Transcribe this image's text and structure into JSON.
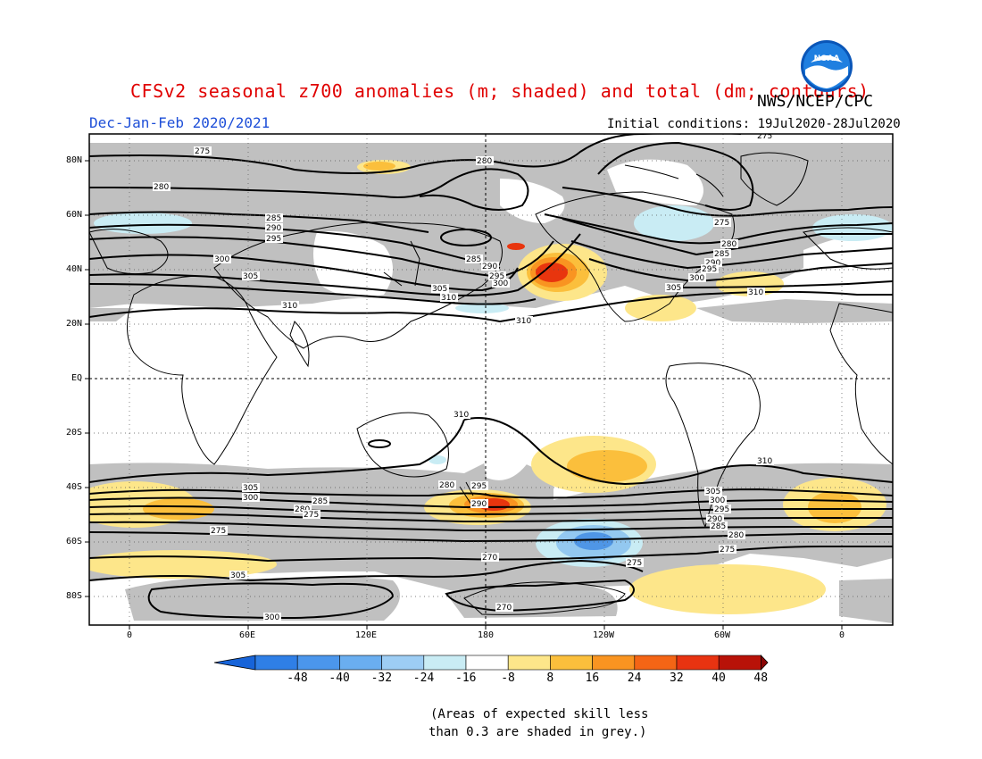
{
  "header": {
    "title": "CFSv2 seasonal z700 anomalies (m; shaded) and total (dm; contours)",
    "agency": "NWS/NCEP/CPC",
    "season": "Dec-Jan-Feb 2020/2021",
    "initial_conditions": "Initial conditions: 19Jul2020-28Jul2020",
    "logo_text": "NOAA"
  },
  "map": {
    "lat_labels": [
      "80N",
      "60N",
      "40N",
      "20N",
      "EQ",
      "20S",
      "40S",
      "60S",
      "80S"
    ],
    "lon_labels": [
      "0",
      "60E",
      "120E",
      "180",
      "120W",
      "60W",
      "0"
    ],
    "contour_labels": [
      "275",
      "275",
      "280",
      "280",
      "285",
      "290",
      "295",
      "300",
      "305",
      "310",
      "310",
      "275",
      "280",
      "285",
      "290",
      "295",
      "300",
      "305",
      "310",
      "310",
      "310",
      "305",
      "300",
      "295",
      "290",
      "285",
      "280",
      "275",
      "305",
      "300",
      "295",
      "290",
      "285",
      "280",
      "275",
      "270",
      "270",
      "275",
      "275",
      "305",
      "300",
      "280",
      "285",
      "290",
      "295",
      "300",
      "305",
      "310"
    ],
    "colors": {
      "skill_grey": "#c0c0c0",
      "warm_light": "#fde68a",
      "warm_mid": "#fbbf3c",
      "warm_strong": "#f97316",
      "warm_hot": "#e8350e",
      "cool_light": "#c9ecf4",
      "cool_mid": "#93c8f0",
      "cool_strong": "#4f96e6"
    }
  },
  "colorbar": {
    "ticks": [
      "-48",
      "-40",
      "-32",
      "-24",
      "-16",
      "-8",
      "8",
      "16",
      "24",
      "32",
      "40",
      "48"
    ],
    "colors": [
      "#1764d9",
      "#2f7fe6",
      "#4b96ec",
      "#6aaef0",
      "#9dcdf4",
      "#c9ecf4",
      "#ffffff",
      "#fde68a",
      "#fbbf3c",
      "#f99421",
      "#f46515",
      "#e83311",
      "#b81208",
      "#8a0505"
    ]
  },
  "footnote": {
    "line1": "(Areas of expected skill less",
    "line2": "than 0.3 are shaded in grey.)"
  }
}
